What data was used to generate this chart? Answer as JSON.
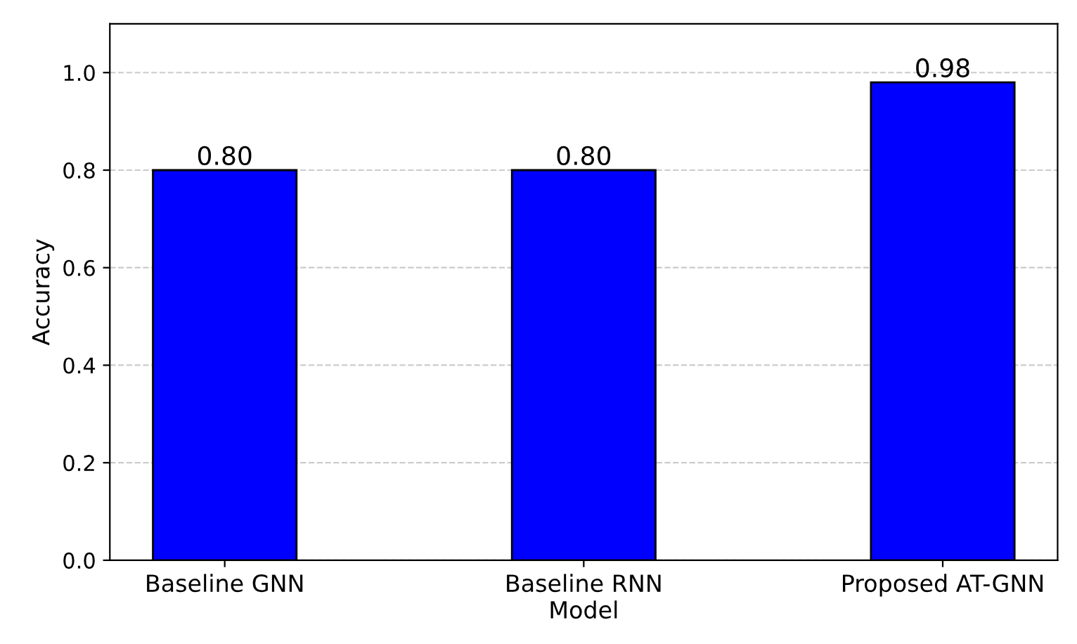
{
  "chart_data": {
    "type": "bar",
    "xlabel": "Model",
    "ylabel": "Accuracy",
    "categories": [
      "Baseline GNN",
      "Baseline RNN",
      "Proposed AT-GNN"
    ],
    "values": [
      0.8,
      0.8,
      0.98
    ],
    "value_labels": [
      "0.80",
      "0.80",
      "0.98"
    ],
    "color": "#0000ff",
    "ylim": [
      0,
      1.1
    ],
    "yticks": [
      {
        "value": 0,
        "label": "0.0"
      },
      0.2,
      0.4,
      0.6,
      0.8,
      {
        "value": 1,
        "label": "1.0"
      }
    ],
    "grid": "y"
  }
}
